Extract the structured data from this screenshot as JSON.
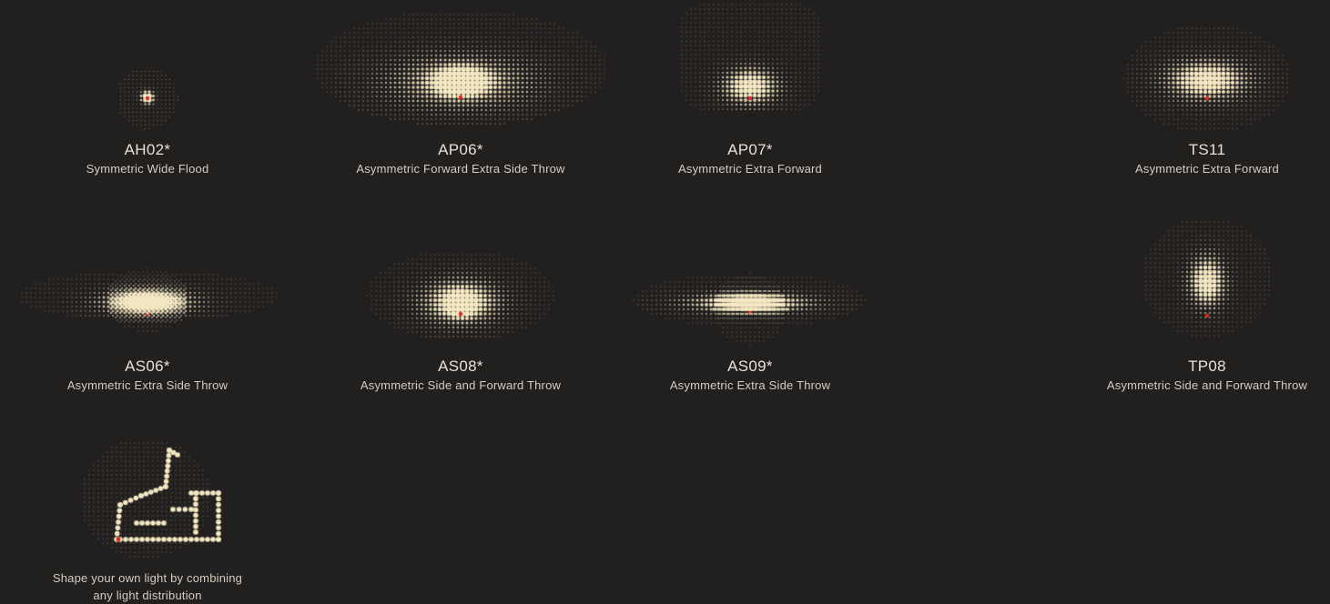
{
  "colors": {
    "background": "#221f1f",
    "dot": "#f4e8c3",
    "source": "#e2261d"
  },
  "distributions": [
    {
      "code": "AH02*",
      "description": "Symmetric Wide Flood"
    },
    {
      "code": "AP06*",
      "description": "Asymmetric Forward Extra Side Throw"
    },
    {
      "code": "AP07*",
      "description": "Asymmetric Extra Forward"
    },
    {
      "code": "TS11",
      "description": "Asymmetric Extra Forward"
    },
    {
      "code": "AS06*",
      "description": "Asymmetric Extra Side Throw"
    },
    {
      "code": "AS08*",
      "description": "Asymmetric Side and Forward Throw"
    },
    {
      "code": "AS09*",
      "description": "Asymmetric Extra Side Throw"
    },
    {
      "code": "TP08",
      "description": "Asymmetric Side and Forward Throw"
    }
  ],
  "custom": {
    "line1": "Shape your own light by combining",
    "line2": "any light distribution"
  }
}
